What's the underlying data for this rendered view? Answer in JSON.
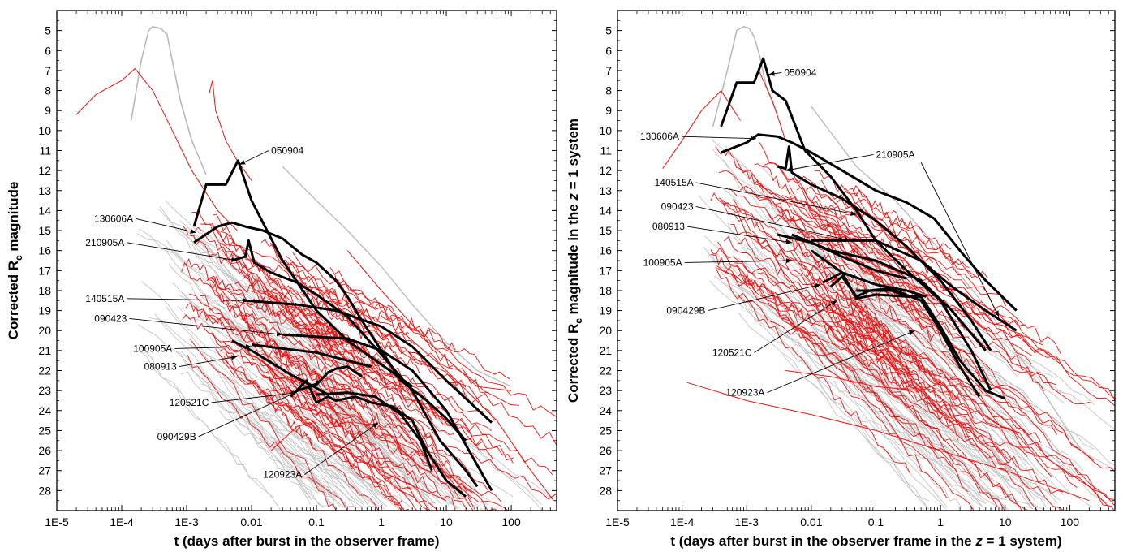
{
  "chart_data": [
    {
      "type": "line",
      "xscale": "log",
      "xlim": [
        1e-05,
        500
      ],
      "ylim": [
        29,
        4
      ],
      "y_inverted": true,
      "xlabel": "t (days after burst in the observer frame)",
      "ylabel_parts": {
        "pre": "Corrected R",
        "sub": "c",
        "post": " magnitude"
      },
      "xticks": [
        {
          "v": 1e-05,
          "label": "1E-5"
        },
        {
          "v": 0.0001,
          "label": "1E-4"
        },
        {
          "v": 0.001,
          "label": "1E-3"
        },
        {
          "v": 0.01,
          "label": "0.01"
        },
        {
          "v": 0.1,
          "label": "0.1"
        },
        {
          "v": 1,
          "label": "1"
        },
        {
          "v": 10,
          "label": "10"
        },
        {
          "v": 100,
          "label": "100"
        }
      ],
      "yticks": [
        5,
        6,
        7,
        8,
        9,
        10,
        11,
        12,
        13,
        14,
        15,
        16,
        17,
        18,
        19,
        20,
        21,
        22,
        23,
        24,
        25,
        26,
        27,
        28
      ],
      "highlighted": [
        {
          "name": "050904",
          "points": [
            [
              0.0013,
              14.8
            ],
            [
              0.002,
              12.7
            ],
            [
              0.004,
              12.7
            ],
            [
              0.0062,
              11.5
            ],
            [
              0.01,
              13.5
            ],
            [
              0.03,
              16.5
            ],
            [
              0.1,
              19
            ],
            [
              0.3,
              20.5
            ],
            [
              1,
              21.7
            ],
            [
              3,
              22.8
            ]
          ]
        },
        {
          "name": "130606A",
          "points": [
            [
              0.0013,
              15.6
            ],
            [
              0.003,
              14.8
            ],
            [
              0.005,
              14.6
            ],
            [
              0.008,
              14.8
            ],
            [
              0.015,
              15
            ],
            [
              0.03,
              15.4
            ],
            [
              0.06,
              16.2
            ],
            [
              0.1,
              16.6
            ],
            [
              0.2,
              17.5
            ],
            [
              0.3,
              18.3
            ],
            [
              0.5,
              19.5
            ],
            [
              1,
              21
            ],
            [
              2,
              22.5
            ],
            [
              5,
              23.5
            ],
            [
              10,
              24.4
            ],
            [
              20,
              25.5
            ]
          ]
        },
        {
          "name": "210905A",
          "points": [
            [
              0.005,
              16.5
            ],
            [
              0.008,
              16.3
            ],
            [
              0.009,
              15.5
            ],
            [
              0.011,
              16.6
            ],
            [
              0.02,
              17.1
            ],
            [
              0.05,
              17.6
            ],
            [
              0.1,
              18.2
            ],
            [
              0.3,
              19.3
            ],
            [
              1,
              21.2
            ],
            [
              3,
              23
            ],
            [
              8,
              25.5
            ],
            [
              20,
              27
            ],
            [
              30,
              27.8
            ]
          ]
        },
        {
          "name": "140515A",
          "points": [
            [
              0.008,
              18.5
            ],
            [
              0.05,
              18.7
            ],
            [
              0.2,
              19
            ],
            [
              1,
              19.8
            ],
            [
              3,
              20.8
            ],
            [
              10,
              22.5
            ],
            [
              50,
              24.6
            ]
          ]
        },
        {
          "name": "090423",
          "points": [
            [
              0.03,
              20.2
            ],
            [
              0.3,
              20.4
            ],
            [
              1,
              21
            ],
            [
              3,
              22
            ],
            [
              10,
              24
            ],
            [
              50,
              28
            ]
          ]
        },
        {
          "name": "100905A",
          "points": [
            [
              0.01,
              20.7
            ],
            [
              0.03,
              20.9
            ],
            [
              0.1,
              21.1
            ],
            [
              0.3,
              21.5
            ],
            [
              0.7,
              21.8
            ]
          ]
        },
        {
          "name": "080913",
          "points": [
            [
              0.005,
              20.5
            ],
            [
              0.01,
              21
            ],
            [
              0.02,
              21.6
            ],
            [
              0.04,
              22.2
            ],
            [
              0.08,
              22.7
            ],
            [
              0.15,
              23.2
            ]
          ]
        },
        {
          "name": "120521C",
          "points": [
            [
              0.05,
              23
            ],
            [
              0.1,
              22.7
            ],
            [
              0.15,
              22.1
            ],
            [
              0.2,
              21.9
            ],
            [
              0.3,
              21.8
            ],
            [
              0.5,
              22.3
            ]
          ]
        },
        {
          "name": "090429B",
          "points": [
            [
              0.04,
              23.3
            ],
            [
              0.07,
              22.5
            ],
            [
              0.1,
              23.6
            ],
            [
              0.15,
              23.3
            ],
            [
              0.2,
              23.5
            ],
            [
              0.4,
              23.3
            ],
            [
              0.7,
              23.6
            ],
            [
              1.5,
              23.8
            ],
            [
              3,
              24.5
            ],
            [
              5,
              26
            ],
            [
              10,
              27.5
            ],
            [
              20,
              28.3
            ]
          ]
        },
        {
          "name": "120923A",
          "points": [
            [
              0.1,
              23.2
            ],
            [
              0.3,
              23.1
            ],
            [
              0.8,
              23.3
            ],
            [
              2,
              24.2
            ],
            [
              4,
              25.5
            ],
            [
              6,
              27
            ]
          ]
        }
      ],
      "annotations": [
        {
          "label": "050904",
          "tx": 0.02,
          "ty": 11,
          "ax": 0.0065,
          "ay": 11.7
        },
        {
          "label": "130606A",
          "tx": 0.00015,
          "ty": 14.4,
          "ax": 0.0014,
          "ay": 15.1
        },
        {
          "label": "210905A",
          "tx": 0.00011,
          "ty": 15.6,
          "ax": 0.006,
          "ay": 16.5
        },
        {
          "label": "140515A",
          "tx": 0.00011,
          "ty": 18.4,
          "ax": 0.009,
          "ay": 18.5
        },
        {
          "label": "090423",
          "tx": 0.00012,
          "ty": 19.4,
          "ax": 0.03,
          "ay": 20.2
        },
        {
          "label": "100905A",
          "tx": 0.0006,
          "ty": 20.9,
          "ax": 0.01,
          "ay": 20.8
        },
        {
          "label": "080913",
          "tx": 0.0007,
          "ty": 21.8,
          "ax": 0.006,
          "ay": 21.3
        },
        {
          "label": "120521C",
          "tx": 0.0022,
          "ty": 23.6,
          "ax": 0.05,
          "ay": 23.1
        },
        {
          "label": "090429B",
          "tx": 0.0014,
          "ty": 25.3,
          "ax": 0.12,
          "ay": 22.5
        },
        {
          "label": "120923A",
          "tx": 0.06,
          "ty": 27.2,
          "ax": 0.9,
          "ay": 24.6
        }
      ],
      "colors": {
        "highlight": "#000000",
        "red": "#ee1111",
        "grey": "#c4c4c4"
      }
    },
    {
      "type": "line",
      "xscale": "log",
      "xlim": [
        1e-05,
        500
      ],
      "ylim": [
        29,
        4
      ],
      "y_inverted": true,
      "xlabel_parts": {
        "pre": "t (days after burst in the observer frame in the ",
        "italic": "z",
        "post": " = 1 system)"
      },
      "ylabel_parts": {
        "pre": "Corrected R",
        "sub": "c",
        "mid": " magnitude in the ",
        "italic": "z",
        "post": " = 1 system"
      },
      "xticks": [
        {
          "v": 1e-05,
          "label": "1E-5"
        },
        {
          "v": 0.0001,
          "label": "1E-4"
        },
        {
          "v": 0.001,
          "label": "1E-3"
        },
        {
          "v": 0.01,
          "label": "0.01"
        },
        {
          "v": 0.1,
          "label": "0.1"
        },
        {
          "v": 1,
          "label": "1"
        },
        {
          "v": 10,
          "label": "10"
        },
        {
          "v": 100,
          "label": "100"
        }
      ],
      "yticks": [
        5,
        6,
        7,
        8,
        9,
        10,
        11,
        12,
        13,
        14,
        15,
        16,
        17,
        18,
        19,
        20,
        21,
        22,
        23,
        24,
        25,
        26,
        27,
        28
      ],
      "highlighted": [
        {
          "name": "050904",
          "points": [
            [
              0.0004,
              9.8
            ],
            [
              0.0007,
              7.6
            ],
            [
              0.0013,
              7.6
            ],
            [
              0.0018,
              6.4
            ],
            [
              0.0025,
              8
            ],
            [
              0.004,
              8.5
            ],
            [
              0.008,
              11
            ],
            [
              0.02,
              12.3
            ],
            [
              0.05,
              14
            ],
            [
              0.1,
              15.5
            ],
            [
              0.3,
              17
            ],
            [
              1,
              18.5
            ],
            [
              3,
              21
            ],
            [
              6,
              23
            ]
          ]
        },
        {
          "name": "130606A",
          "points": [
            [
              0.0004,
              11.1
            ],
            [
              0.001,
              10.6
            ],
            [
              0.0015,
              10.2
            ],
            [
              0.003,
              10.3
            ],
            [
              0.005,
              10.6
            ],
            [
              0.01,
              11.1
            ],
            [
              0.03,
              12
            ],
            [
              0.1,
              13
            ],
            [
              0.3,
              13.6
            ],
            [
              0.8,
              14.4
            ],
            [
              2,
              16
            ],
            [
              5,
              17.5
            ],
            [
              15,
              19
            ]
          ]
        },
        {
          "name": "210905A",
          "points": [
            [
              0.003,
              11.8
            ],
            [
              0.004,
              11.9
            ],
            [
              0.0045,
              10.8
            ],
            [
              0.005,
              12.1
            ],
            [
              0.01,
              12.7
            ],
            [
              0.03,
              13.4
            ],
            [
              0.1,
              14.5
            ],
            [
              0.3,
              15.8
            ],
            [
              1,
              17.5
            ],
            [
              3,
              19.5
            ],
            [
              6,
              21
            ]
          ]
        },
        {
          "name": "140515A",
          "points": [
            [
              0.01,
              15.5
            ],
            [
              0.1,
              15.5
            ],
            [
              0.5,
              16.5
            ],
            [
              1.5,
              17.8
            ],
            [
              5,
              19
            ],
            [
              15,
              20
            ]
          ]
        },
        {
          "name": "090423",
          "points": [
            [
              0.005,
              15.2
            ],
            [
              0.02,
              16
            ],
            [
              0.1,
              16.5
            ],
            [
              0.5,
              17.5
            ],
            [
              1.5,
              19
            ],
            [
              5,
              21
            ]
          ]
        },
        {
          "name": "100905A",
          "points": [
            [
              0.003,
              15.2
            ],
            [
              0.01,
              15.6
            ],
            [
              0.03,
              16.3
            ],
            [
              0.1,
              17
            ],
            [
              0.3,
              17.4
            ]
          ]
        },
        {
          "name": "080913",
          "points": [
            [
              0.01,
              16
            ],
            [
              0.03,
              17.1
            ],
            [
              0.1,
              17.7
            ],
            [
              0.3,
              18
            ],
            [
              0.6,
              18.3
            ]
          ]
        },
        {
          "name": "120521C",
          "points": [
            [
              0.02,
              17.8
            ],
            [
              0.03,
              17.3
            ],
            [
              0.05,
              18.3
            ],
            [
              0.08,
              18
            ],
            [
              0.15,
              17.9
            ],
            [
              0.3,
              18.3
            ]
          ]
        },
        {
          "name": "090429B",
          "points": [
            [
              0.015,
              17.6
            ],
            [
              0.03,
              17.1
            ],
            [
              0.05,
              18.4
            ],
            [
              0.1,
              18.2
            ],
            [
              0.3,
              18.3
            ],
            [
              0.5,
              18.3
            ],
            [
              1,
              19.8
            ],
            [
              2,
              21.5
            ],
            [
              5,
              23
            ],
            [
              10,
              23.4
            ]
          ]
        },
        {
          "name": "120923A",
          "points": [
            [
              0.05,
              18
            ],
            [
              0.2,
              18
            ],
            [
              0.5,
              18.5
            ],
            [
              1,
              20
            ],
            [
              2,
              21.8
            ],
            [
              4,
              23.3
            ]
          ]
        }
      ],
      "annotations": [
        {
          "label": "050904",
          "tx": 0.0038,
          "ty": 7.1,
          "ax": 0.0022,
          "ay": 7.2
        },
        {
          "label": "130606A",
          "tx": 9e-05,
          "ty": 10.3,
          "ax": 0.0014,
          "ay": 10.4
        },
        {
          "label": "210905A",
          "tx": 0.1,
          "ty": 11.2,
          "ax": 0.004,
          "ay": 12
        },
        {
          "label": "140515A",
          "tx": 0.00015,
          "ty": 12.6,
          "ax": 0.05,
          "ay": 14.2
        },
        {
          "label": "090423",
          "tx": 0.00015,
          "ty": 13.8,
          "ax": 0.04,
          "ay": 15.5
        },
        {
          "label": "080913",
          "tx": 0.00011,
          "ty": 14.8,
          "ax": 0.005,
          "ay": 15.6
        },
        {
          "label": "100905A",
          "tx": 0.0001,
          "ty": 16.6,
          "ax": 0.005,
          "ay": 16.5
        },
        {
          "label": "090429B",
          "tx": 0.00023,
          "ty": 19,
          "ax": 0.014,
          "ay": 17.7
        },
        {
          "label": "120521C",
          "tx": 0.0012,
          "ty": 21.1,
          "ax": 0.025,
          "ay": 18.5
        },
        {
          "label": "120923A",
          "tx": 0.0019,
          "ty": 23.1,
          "ax": 0.4,
          "ay": 20
        },
        {
          "label": "",
          "tx": 0.5,
          "ty": 11.6,
          "ax": 8,
          "ay": 19.3
        }
      ],
      "colors": {
        "highlight": "#000000",
        "red": "#ee1111",
        "grey": "#c4c4c4"
      }
    }
  ]
}
